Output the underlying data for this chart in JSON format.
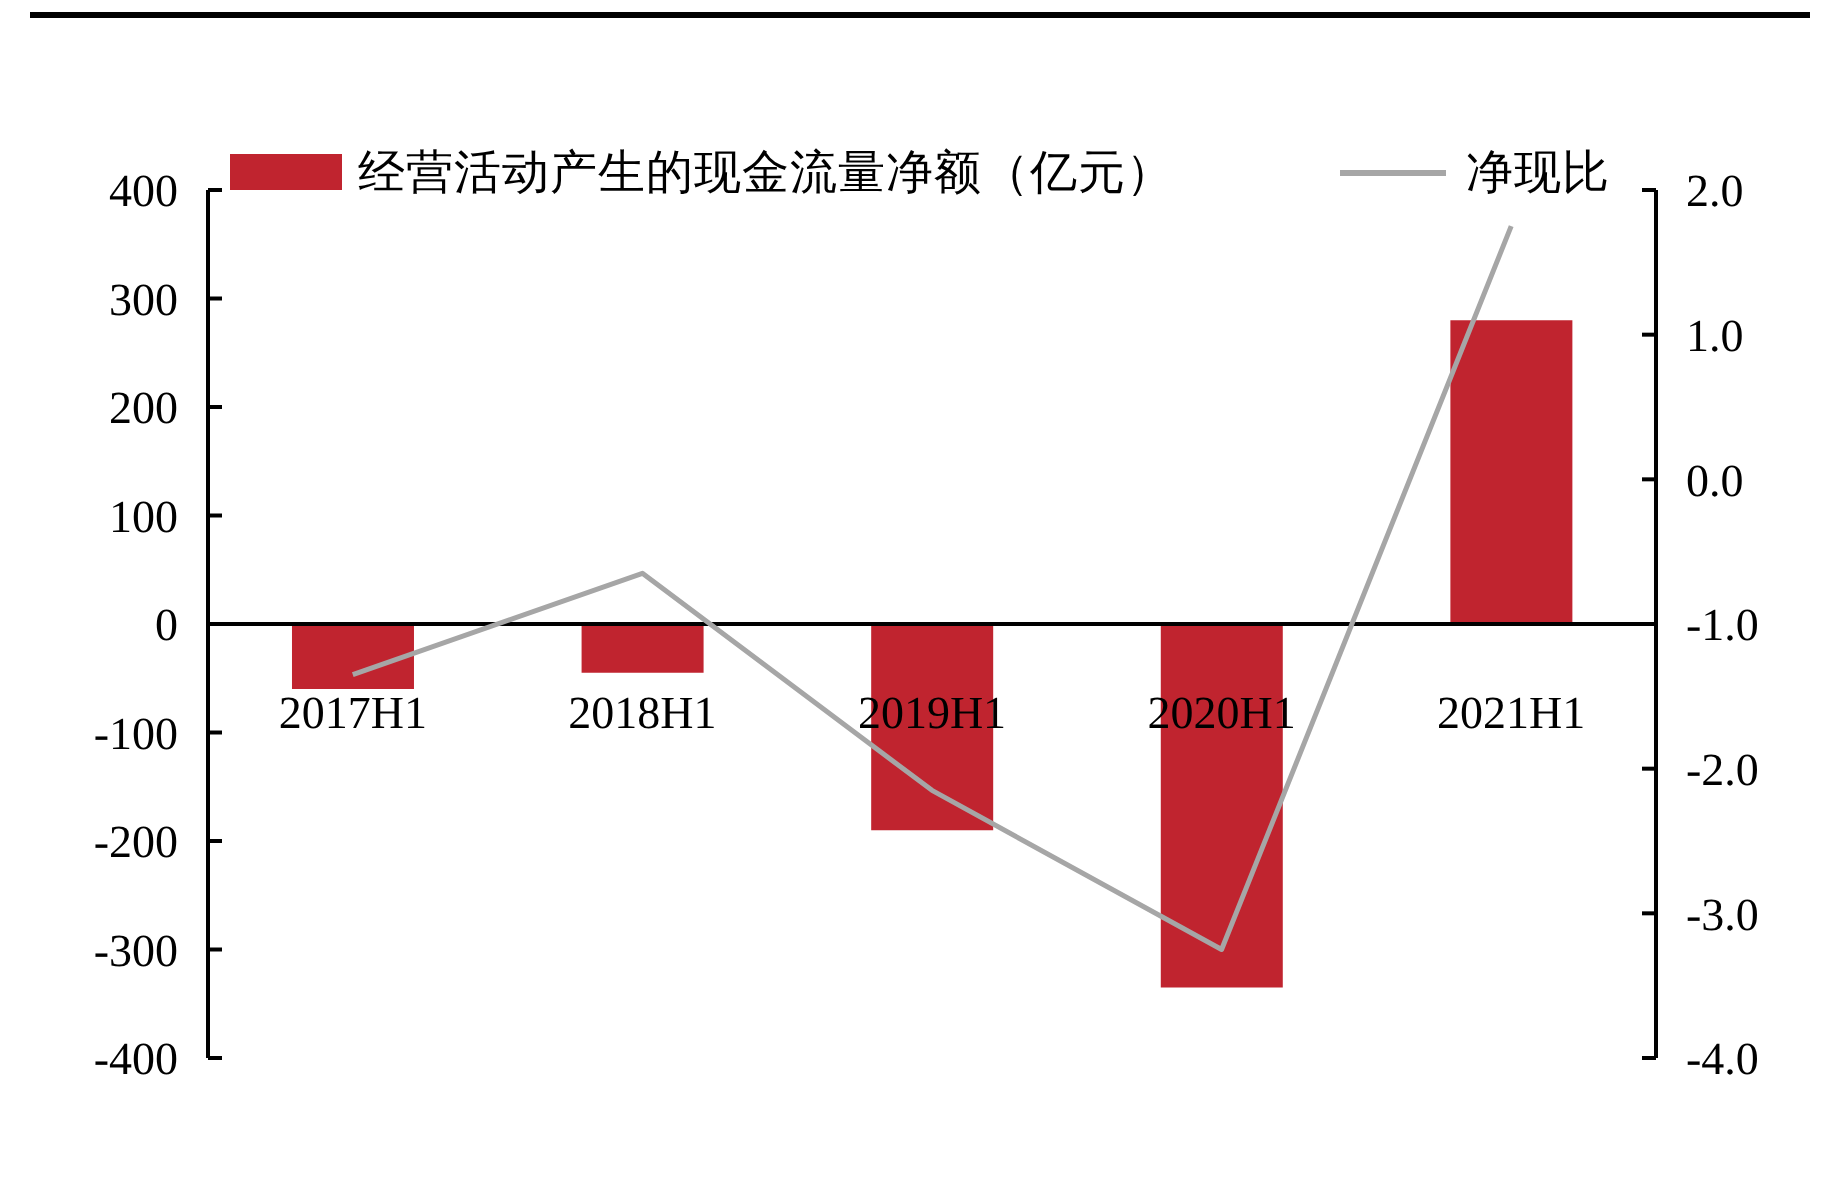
{
  "chart_data": {
    "type": "bar",
    "categories": [
      "2017H1",
      "2018H1",
      "2019H1",
      "2020H1",
      "2021H1"
    ],
    "series": [
      {
        "name": "经营活动产生的现金流量净额（亿元）",
        "color": "#c0242f",
        "values": [
          -60,
          -45,
          -190,
          -335,
          280
        ]
      },
      {
        "name": "净现比",
        "type": "line",
        "axis": "y2",
        "color": "#a6a6a6",
        "values": [
          -1.35,
          -0.65,
          -2.15,
          -3.25,
          1.75
        ]
      }
    ],
    "ylim": [
      -400,
      400
    ],
    "yticks": [
      -400,
      -300,
      -200,
      -100,
      0,
      100,
      200,
      300,
      400
    ],
    "y2lim": [
      -4,
      2
    ],
    "y2ticks": [
      {
        "value": -4,
        "label": "-4.0"
      },
      {
        "value": -3,
        "label": "-3.0"
      },
      {
        "value": -2,
        "label": "-2.0"
      },
      {
        "value": -1,
        "label": "-1.0"
      },
      {
        "value": 0,
        "label": "0.0"
      },
      {
        "value": 1,
        "label": "1.0"
      },
      {
        "value": 2,
        "label": "2.0"
      }
    ],
    "legend": "top",
    "marker": "none"
  }
}
